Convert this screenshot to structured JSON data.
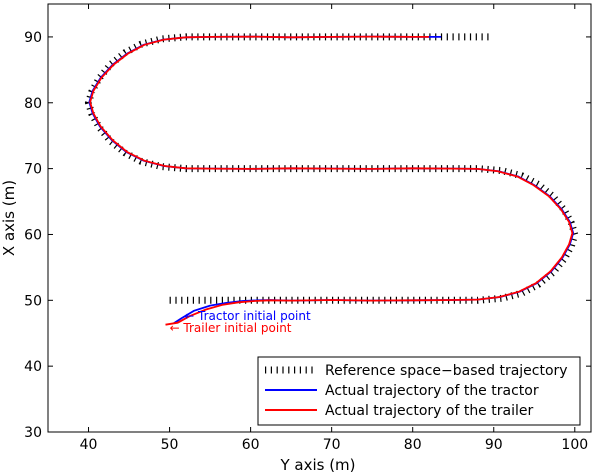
{
  "chart_data": {
    "type": "line",
    "title": "",
    "xlabel": "Y axis (m)",
    "ylabel": "X axis (m)",
    "xlim": [
      35,
      102
    ],
    "ylim": [
      30,
      95
    ],
    "xticks": [
      "40",
      "50",
      "60",
      "70",
      "80",
      "90",
      "100"
    ],
    "yticks": [
      "30",
      "40",
      "50",
      "60",
      "70",
      "80",
      "90"
    ],
    "grid": false,
    "legend_position": "bottom-right",
    "series": [
      {
        "name": "Reference space−based trajectory",
        "color": "#000000",
        "style": "dotted",
        "x": [
          50,
          52,
          54,
          56,
          58,
          60,
          62,
          65,
          70,
          75,
          80,
          85,
          88,
          91,
          93.5,
          95.5,
          97.3,
          98.7,
          99.6,
          100.0,
          99.6,
          98.7,
          97.3,
          95.5,
          93.5,
          91,
          88,
          85,
          80,
          75,
          70,
          65,
          60,
          55,
          52,
          49,
          46.5,
          44.5,
          42.7,
          41.3,
          40.4,
          40.0,
          40.4,
          41.3,
          42.7,
          44.5,
          46.5,
          49,
          52,
          55,
          60,
          65,
          70,
          75,
          80,
          85,
          89.5
        ],
        "y": [
          50,
          50,
          50,
          50,
          50,
          50,
          50,
          50,
          50,
          50,
          50,
          50,
          50,
          50.3,
          51.1,
          52.4,
          54.2,
          56.3,
          58.3,
          60,
          61.7,
          63.7,
          65.8,
          67.6,
          68.9,
          69.7,
          70,
          70,
          70,
          70,
          70,
          70,
          70,
          70,
          70,
          70.3,
          71.1,
          72.4,
          74.2,
          76.3,
          78.3,
          80,
          81.7,
          83.7,
          85.8,
          87.6,
          88.9,
          89.7,
          90,
          90,
          90,
          90,
          90,
          90,
          90,
          90,
          90
        ]
      },
      {
        "name": "Actual trajectory of the tractor",
        "color": "#0000ff",
        "style": "solid",
        "x": [
          50.5,
          51.5,
          53,
          55,
          57,
          59,
          61,
          62.5,
          65,
          70,
          75,
          80,
          85,
          88,
          90.8,
          93.2,
          95.3,
          97.1,
          98.5,
          99.4,
          99.8,
          99.4,
          98.4,
          96.9,
          95,
          93,
          90.6,
          88,
          85,
          80,
          75,
          70,
          65,
          60,
          55,
          52,
          49.3,
          46.8,
          44.7,
          42.9,
          41.4,
          40.5,
          40.1,
          40.5,
          41.5,
          43,
          44.8,
          46.8,
          49.2,
          52,
          55,
          60,
          65,
          70,
          75,
          80,
          83.5
        ],
        "y": [
          46.5,
          47.3,
          48.4,
          49.2,
          49.6,
          49.9,
          50.0,
          50.05,
          49.95,
          50.05,
          49.95,
          50.0,
          50.05,
          50.1,
          50.5,
          51.3,
          52.6,
          54.4,
          56.5,
          58.5,
          60.2,
          61.9,
          63.8,
          65.8,
          67.5,
          68.8,
          69.6,
          69.95,
          70.0,
          70.05,
          69.95,
          70.0,
          70.05,
          69.95,
          70.0,
          70.05,
          70.4,
          71.2,
          72.5,
          74.3,
          76.4,
          78.4,
          80.1,
          81.8,
          83.8,
          85.8,
          87.5,
          88.8,
          89.6,
          89.95,
          90.0,
          90.05,
          89.95,
          90.0,
          90.05,
          90.0,
          90.0
        ]
      },
      {
        "name": "Actual trajectory of the trailer",
        "color": "#ff0000",
        "style": "solid",
        "x": [
          49.5,
          51,
          52.5,
          54.5,
          56.5,
          58.5,
          60.5,
          62.3,
          65,
          70,
          75,
          80,
          85,
          88,
          90.7,
          93.1,
          95.2,
          97,
          98.4,
          99.3,
          99.7,
          99.3,
          98.3,
          96.8,
          94.9,
          92.9,
          90.5,
          88,
          85,
          80,
          75,
          70,
          65,
          60,
          55,
          52,
          49.4,
          46.9,
          44.8,
          43,
          41.5,
          40.6,
          40.2,
          40.6,
          41.6,
          43.1,
          44.9,
          46.9,
          49.3,
          52,
          55,
          60,
          65,
          70,
          75,
          80,
          82
        ],
        "y": [
          46.3,
          46.6,
          47.6,
          48.6,
          49.3,
          49.7,
          49.9,
          50.0,
          49.95,
          50.05,
          49.95,
          50.0,
          50.05,
          50.1,
          50.5,
          51.3,
          52.6,
          54.4,
          56.5,
          58.5,
          60.2,
          61.9,
          63.8,
          65.8,
          67.5,
          68.8,
          69.6,
          69.95,
          70.0,
          70.05,
          69.95,
          70.0,
          70.05,
          69.95,
          70.0,
          70.05,
          70.4,
          71.2,
          72.5,
          74.3,
          76.4,
          78.4,
          80.1,
          81.8,
          83.8,
          85.8,
          87.5,
          88.8,
          89.6,
          89.95,
          90.0,
          90.05,
          89.95,
          90.0,
          90.05,
          90.0,
          90.0
        ]
      }
    ],
    "annotations": [
      {
        "text": "← Tractor initial point",
        "x": 51.8,
        "y": 47.0,
        "color": "#0000ff"
      },
      {
        "text": "←  Trailer initial point",
        "x": 50.0,
        "y": 45.2,
        "color": "#ff0000"
      }
    ]
  }
}
